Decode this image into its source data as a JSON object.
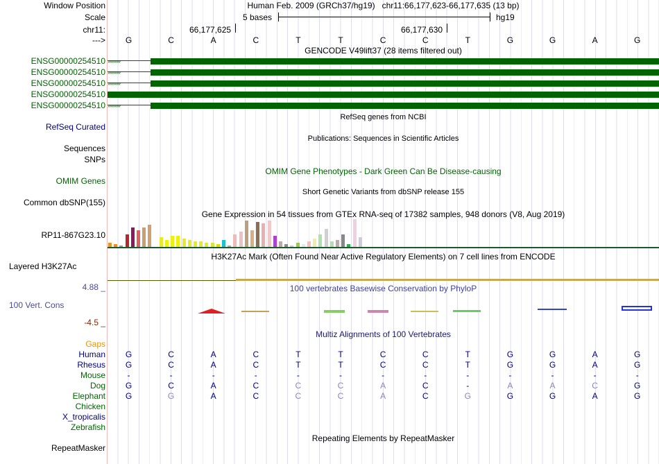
{
  "header": {
    "window_position_label": "Window Position",
    "window_position_value": "Human Feb. 2009 (GRCh37/hg19)   chr11:66,177,623-66,177,635 (13 bp)",
    "scale_label": "Scale",
    "scale_value": "5 bases",
    "scale_db": "hg19",
    "chrom_label": "chr11:",
    "coord1": "66,177,625",
    "coord2": "66,177,630",
    "strand_label": "--->"
  },
  "sequence": [
    "G",
    "C",
    "A",
    "C",
    "T",
    "T",
    "C",
    "C",
    "T",
    "G",
    "G",
    "A",
    "G"
  ],
  "gencode": {
    "title": "GENCODE V49lift37 (28 items filtered out)",
    "genes": [
      "ENSG00000254510",
      "ENSG00000254510",
      "ENSG00000254510",
      "ENSG00000254510",
      "ENSG00000254510"
    ]
  },
  "tracks": {
    "refseq_title": "RefSeq genes from NCBI",
    "refseq_label": "RefSeq Curated",
    "pubs_title": "Publications: Sequences in Scientific Articles",
    "sequences_label": "Sequences",
    "snps_label": "SNPs",
    "omim_title": "OMIM Gene Phenotypes - Dark Green Can Be Disease-causing",
    "omim_label": "OMIM Genes",
    "dbsnp_title": "Short Genetic Variants from dbSNP release 155",
    "dbsnp_label": "Common dbSNP(155)",
    "gtex_title": "Gene Expression in 54 tissues from GTEx RNA-seq of 17382 samples, 948 donors (V8, Aug 2019)",
    "gtex_label": "RP11-867G23.10",
    "h3k27ac_title": "H3K27Ac Mark (Often Found Near Active Regulatory Elements) on 7 cell lines from ENCODE",
    "h3k27ac_label": "Layered H3K27Ac",
    "cons_title": "100 vertebrates Basewise Conservation by PhyloP",
    "cons_label": "100 Vert. Cons",
    "cons_max": "4.88 _",
    "cons_min": "-4.5 _",
    "multiz_title": "Multiz Alignments of 100 Vertebrates",
    "gaps_label": "Gaps",
    "rmsk_title": "Repeating Elements by RepeatMasker",
    "rmsk_label": "RepeatMasker"
  },
  "gtex_bars": [
    {
      "color": "#e89820",
      "value": 0.15
    },
    {
      "color": "#f08a2a",
      "value": 0.1
    },
    {
      "color": "#999999",
      "value": 0.05
    },
    {
      "color": "#b3282a",
      "value": 0.45
    },
    {
      "color": "#8b1a5a",
      "value": 0.7
    },
    {
      "color": "#e06060",
      "value": 0.6
    },
    {
      "color": "#c8a070",
      "value": 0.7
    },
    {
      "color": "#d0a070",
      "value": 0.8
    },
    {
      "color": "#ffffff",
      "value": 0.0
    },
    {
      "color": "#e8e830",
      "value": 0.35
    },
    {
      "color": "#f0f010",
      "value": 0.25
    },
    {
      "color": "#f0f010",
      "value": 0.4
    },
    {
      "color": "#f0f010",
      "value": 0.4
    },
    {
      "color": "#e8e830",
      "value": 0.3
    },
    {
      "color": "#e8e830",
      "value": 0.25
    },
    {
      "color": "#e8e830",
      "value": 0.2
    },
    {
      "color": "#e8e830",
      "value": 0.2
    },
    {
      "color": "#e8e830",
      "value": 0.15
    },
    {
      "color": "#e0e040",
      "value": 0.15
    },
    {
      "color": "#dddd00",
      "value": 0.1
    },
    {
      "color": "#20c0d0",
      "value": 0.25
    },
    {
      "color": "#aaaaaa",
      "value": 0.05
    },
    {
      "color": "#eebbbb",
      "value": 0.45
    },
    {
      "color": "#f0c0c0",
      "value": 0.55
    },
    {
      "color": "#bba080",
      "value": 0.95
    },
    {
      "color": "#d8b080",
      "value": 0.6
    },
    {
      "color": "#8a7050",
      "value": 0.9
    },
    {
      "color": "#e8b0b0",
      "value": 0.85
    },
    {
      "color": "#f0c8c8",
      "value": 0.95
    },
    {
      "color": "#aa44cc",
      "value": 0.4
    },
    {
      "color": "#c0a8a8",
      "value": 0.2
    },
    {
      "color": "#8b8b8b",
      "value": 0.1
    },
    {
      "color": "#cccccc",
      "value": 0.05
    },
    {
      "color": "#99cc44",
      "value": 0.15
    },
    {
      "color": "#e8e8e8",
      "value": 0.1
    },
    {
      "color": "#ffbbbb",
      "value": 0.2
    },
    {
      "color": "#eeeeaa",
      "value": 0.3
    },
    {
      "color": "#b0e0b0",
      "value": 0.45
    },
    {
      "color": "#d0d0d0",
      "value": 0.65
    },
    {
      "color": "#b8d8b8",
      "value": 0.2
    },
    {
      "color": "#bbaaaa",
      "value": 0.25
    },
    {
      "color": "#888888",
      "value": 0.45
    },
    {
      "color": "#33aa55",
      "value": 0.1
    },
    {
      "color": "#f0d0e0",
      "value": 1.0
    },
    {
      "color": "#ccccdd",
      "value": 0.35
    }
  ],
  "species": [
    {
      "name": "Human",
      "color": "#000080",
      "bases": [
        "G",
        "C",
        "A",
        "C",
        "T",
        "T",
        "C",
        "C",
        "T",
        "G",
        "G",
        "A",
        "G"
      ]
    },
    {
      "name": "Rhesus",
      "color": "#000080",
      "bases": [
        "G",
        "C",
        "A",
        "C",
        "T",
        "T",
        "C",
        "C",
        "T",
        "G",
        "G",
        "A",
        "G"
      ]
    },
    {
      "name": "Mouse",
      "color": "#006400",
      "bases": [
        "-",
        "-",
        "-",
        "-",
        "-",
        "-",
        "-",
        "-",
        "-",
        "-",
        "-",
        "-",
        "-"
      ]
    },
    {
      "name": "Dog",
      "color": "#006400",
      "bases": [
        "G",
        "C",
        "A",
        "C",
        "C",
        "C",
        "A",
        "C",
        "-",
        "A",
        "A",
        "C",
        "G"
      ]
    },
    {
      "name": "Elephant",
      "color": "#006400",
      "bases": [
        "G",
        "G",
        "A",
        "C",
        "C",
        "C",
        "A",
        "C",
        "G",
        "G",
        "G",
        "A",
        "G"
      ]
    },
    {
      "name": "Chicken",
      "color": "#006400",
      "bases": []
    },
    {
      "name": "X_tropicalis",
      "color": "#000080",
      "bases": []
    },
    {
      "name": "Zebrafish",
      "color": "#006400",
      "bases": []
    }
  ],
  "mismatch": [
    [
      false,
      false,
      false,
      false,
      false,
      false,
      false,
      false,
      false,
      false,
      false,
      false,
      false
    ],
    [
      false,
      false,
      false,
      false,
      false,
      false,
      false,
      false,
      false,
      false,
      false,
      false,
      false
    ],
    [
      false,
      false,
      false,
      false,
      false,
      false,
      false,
      false,
      false,
      false,
      false,
      false,
      false
    ],
    [
      false,
      false,
      false,
      false,
      true,
      true,
      true,
      false,
      false,
      true,
      true,
      true,
      false
    ],
    [
      false,
      true,
      false,
      false,
      true,
      true,
      true,
      false,
      true,
      false,
      false,
      false,
      false
    ]
  ]
}
